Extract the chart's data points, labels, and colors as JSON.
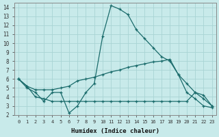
{
  "xlabel": "Humidex (Indice chaleur)",
  "bg_color": "#c8eaea",
  "grid_color": "#a8d4d4",
  "line_color": "#1a6b6b",
  "xlim": [
    -0.5,
    23.5
  ],
  "ylim": [
    2,
    14.5
  ],
  "xticks": [
    0,
    1,
    2,
    3,
    4,
    5,
    6,
    7,
    8,
    9,
    10,
    11,
    12,
    13,
    14,
    15,
    16,
    17,
    18,
    19,
    20,
    21,
    22,
    23
  ],
  "yticks": [
    2,
    3,
    4,
    5,
    6,
    7,
    8,
    9,
    10,
    11,
    12,
    13,
    14
  ],
  "line1_x": [
    0,
    1,
    2,
    3,
    4,
    5,
    6,
    7,
    8,
    9,
    10,
    11,
    12,
    13,
    14,
    15,
    16,
    17,
    18,
    19,
    20,
    21,
    22,
    23
  ],
  "line1_y": [
    6.0,
    5.0,
    4.5,
    3.5,
    4.5,
    4.5,
    2.2,
    3.0,
    4.5,
    5.5,
    10.8,
    14.2,
    13.8,
    13.2,
    11.5,
    10.5,
    9.5,
    8.5,
    8.0,
    6.5,
    4.5,
    3.8,
    3.0,
    2.8
  ],
  "line2_x": [
    0,
    1,
    2,
    3,
    4,
    5,
    6,
    7,
    8,
    9,
    10,
    11,
    12,
    13,
    14,
    15,
    16,
    17,
    18,
    19,
    20,
    21,
    22,
    23
  ],
  "line2_y": [
    6.0,
    5.2,
    4.8,
    4.8,
    4.8,
    5.0,
    5.2,
    5.8,
    6.0,
    6.2,
    6.5,
    6.8,
    7.0,
    7.3,
    7.5,
    7.7,
    7.9,
    8.0,
    8.2,
    6.5,
    5.5,
    4.5,
    4.2,
    3.0
  ],
  "line3_x": [
    0,
    1,
    2,
    3,
    4,
    5,
    6,
    7,
    8,
    9,
    10,
    11,
    12,
    13,
    14,
    15,
    16,
    17,
    18,
    19,
    20,
    21,
    22,
    23
  ],
  "line3_y": [
    6.0,
    5.2,
    4.0,
    3.8,
    3.5,
    3.5,
    3.5,
    3.5,
    3.5,
    3.5,
    3.5,
    3.5,
    3.5,
    3.5,
    3.5,
    3.5,
    3.5,
    3.5,
    3.5,
    3.5,
    3.5,
    4.5,
    3.8,
    3.0
  ]
}
